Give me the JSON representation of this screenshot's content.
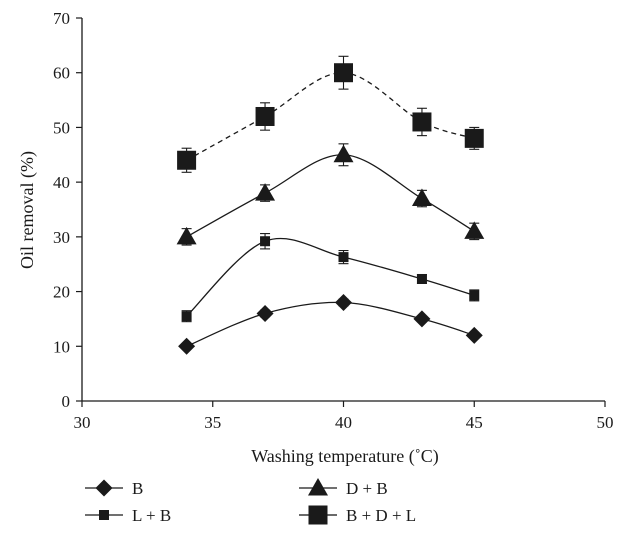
{
  "chart_data": {
    "type": "line",
    "title": "",
    "xlabel": "Washing temperature (˚C)",
    "ylabel": "Oil removal (%)",
    "xlim": [
      30,
      50
    ],
    "ylim": [
      0,
      70
    ],
    "xticks": [
      30,
      35,
      40,
      45,
      50
    ],
    "yticks": [
      0,
      10,
      20,
      30,
      40,
      50,
      60,
      70
    ],
    "grid": false,
    "legend_position": "bottom",
    "x": [
      34,
      37,
      40,
      43,
      45
    ],
    "series": [
      {
        "name": "B",
        "marker": "diamond",
        "line": "solid",
        "values": [
          10,
          16,
          18,
          15,
          12
        ],
        "errors": [
          0.5,
          0.6,
          0.6,
          0.5,
          0.5
        ]
      },
      {
        "name": "D + B",
        "marker": "triangle",
        "line": "solid",
        "values": [
          30,
          38,
          45,
          37,
          31
        ],
        "errors": [
          1.5,
          1.5,
          2.0,
          1.5,
          1.5
        ]
      },
      {
        "name": "L + B",
        "marker": "small-square",
        "line": "solid",
        "values": [
          15.5,
          29.2,
          26.3,
          22.3,
          19.3
        ],
        "errors": [
          1.0,
          1.4,
          1.2,
          0.8,
          1.0
        ]
      },
      {
        "name": "B + D + L",
        "marker": "square",
        "line": "dashed",
        "values": [
          44,
          52,
          60,
          51,
          48
        ],
        "errors": [
          2.2,
          2.5,
          3.0,
          2.5,
          2.0
        ]
      }
    ],
    "colors": {
      "line": "#1a1a1a",
      "marker": "#1a1a1a"
    }
  }
}
